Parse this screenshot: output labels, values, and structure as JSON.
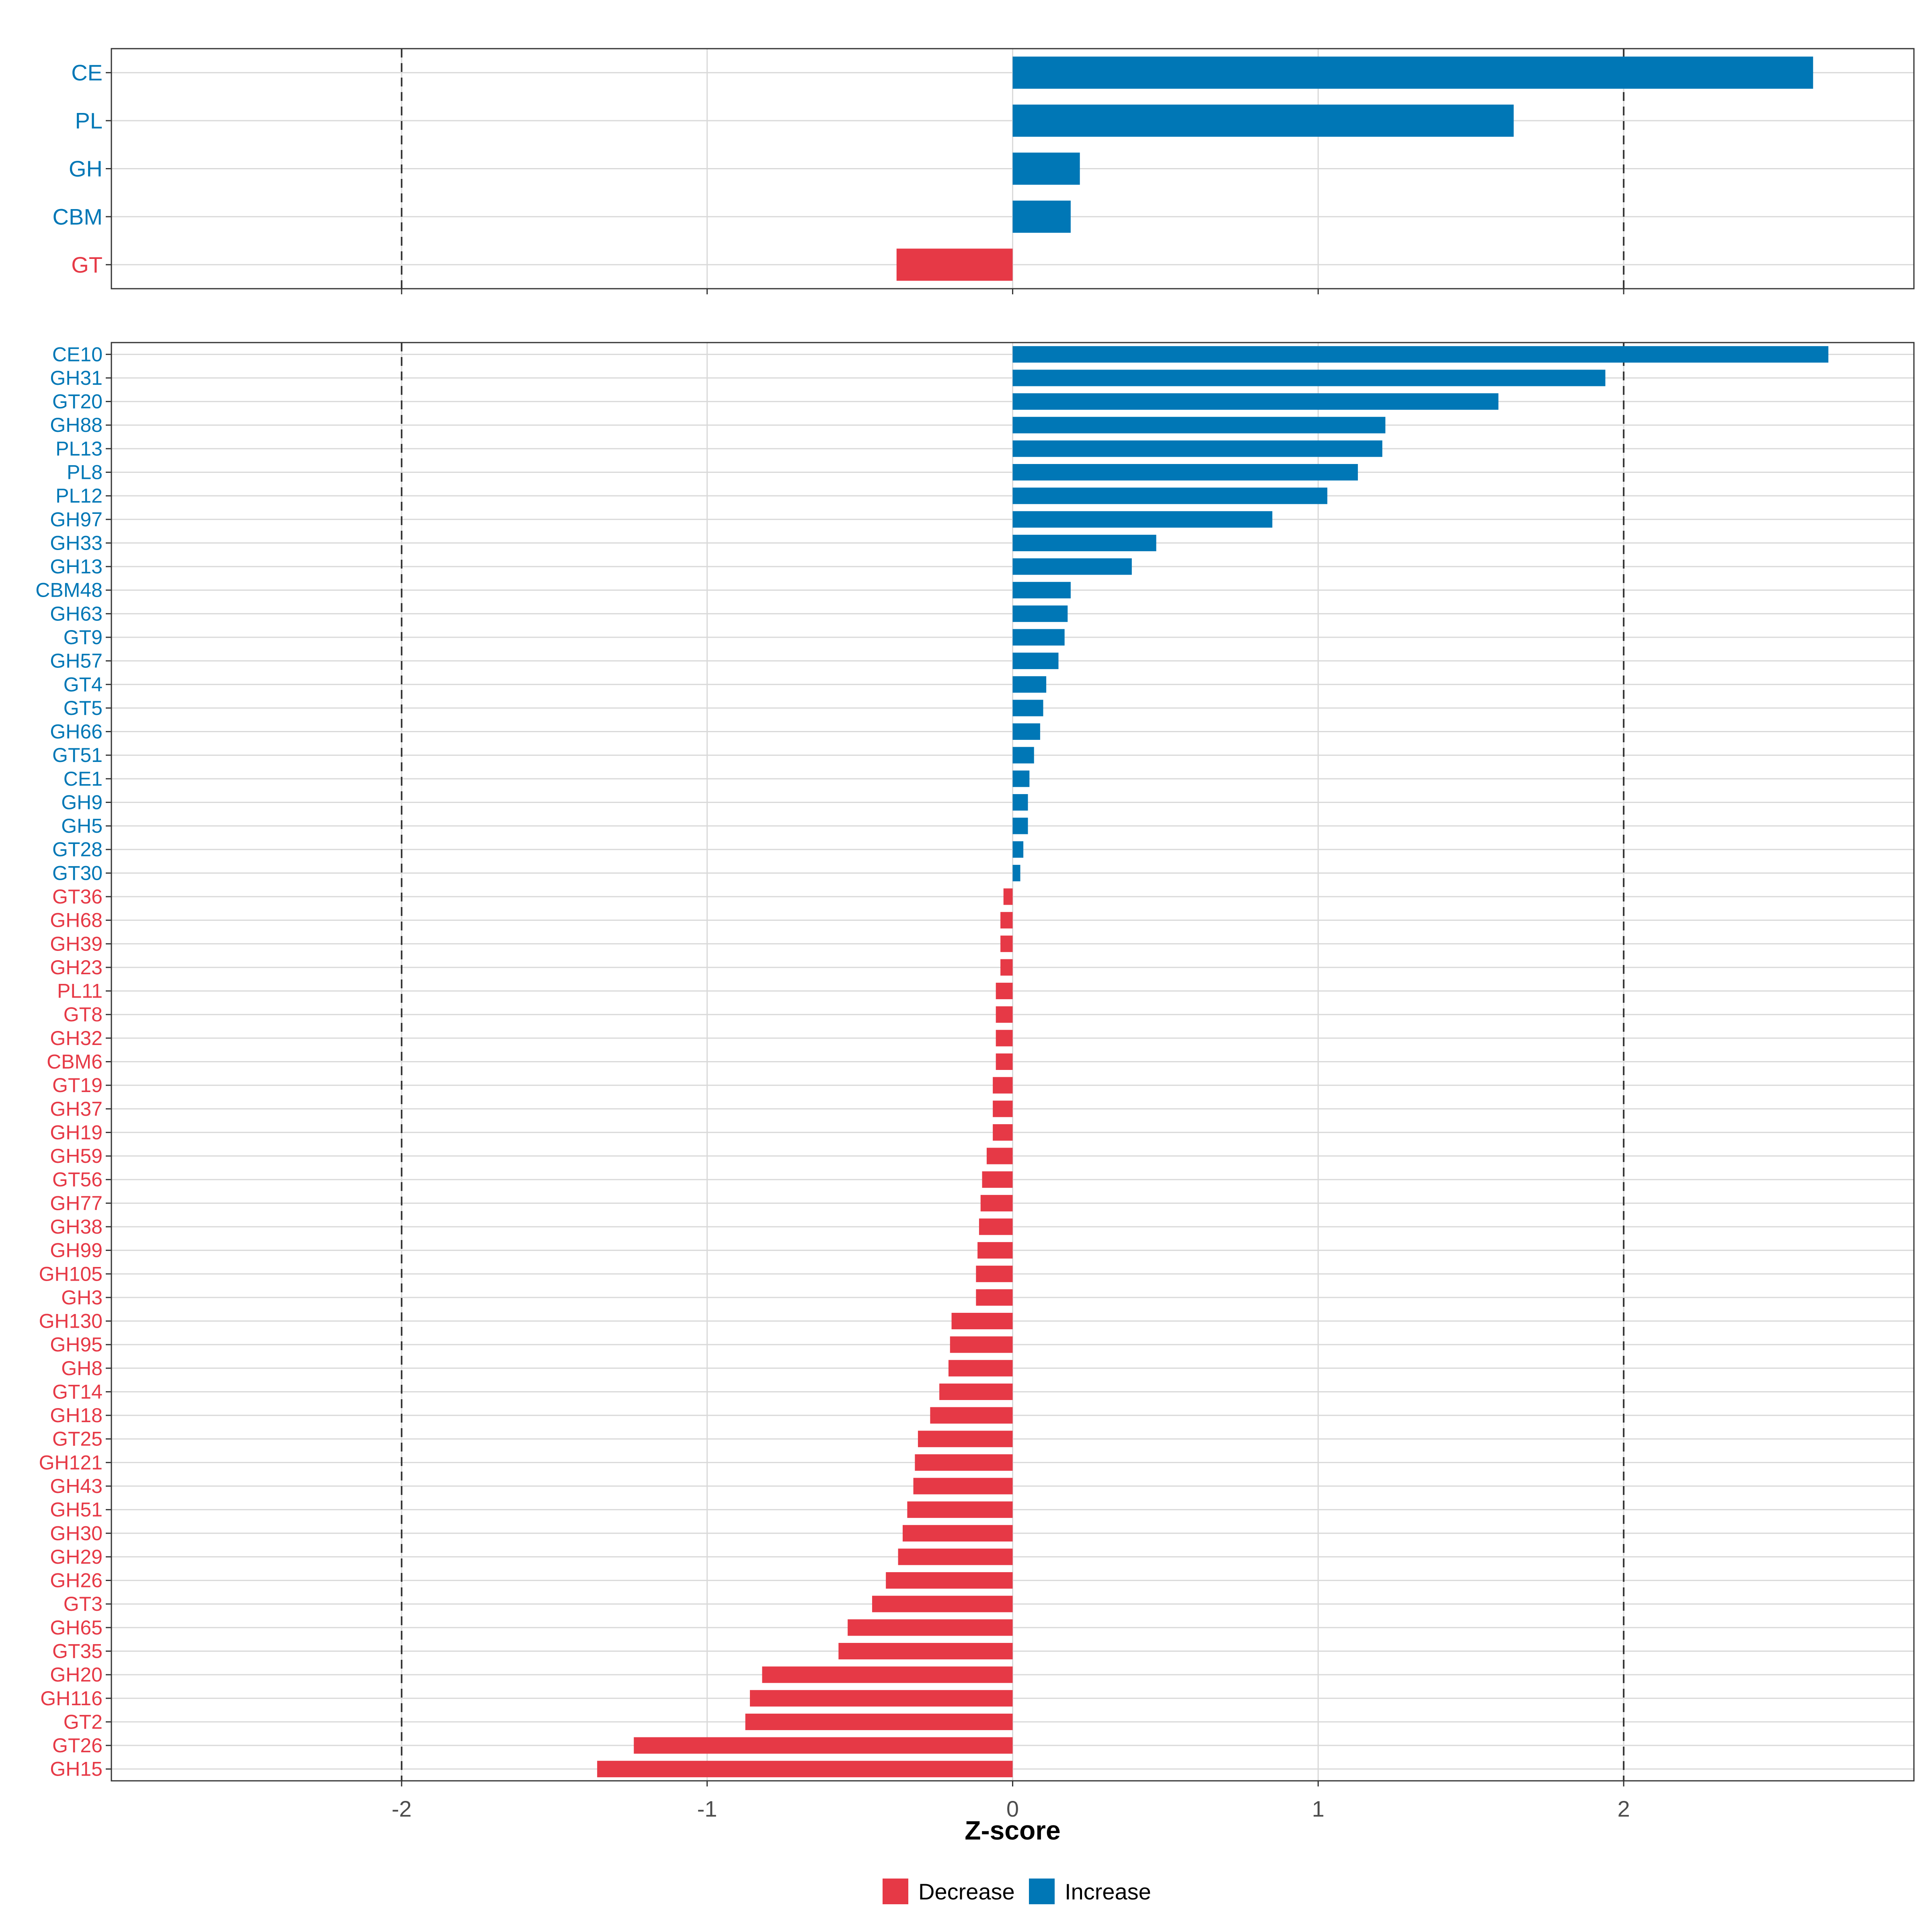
{
  "colors": {
    "decrease": "#E63946",
    "increase": "#0077B6",
    "grid": "#d9d9d9",
    "axis_text": "#4d4d4d",
    "threshold": "#333333",
    "panel_border": "#333333"
  },
  "chart_data": [
    {
      "type": "bar",
      "orientation": "horizontal",
      "panel": "top",
      "categories": [
        "CE",
        "PL",
        "GH",
        "CBM",
        "GT"
      ],
      "values": [
        2.62,
        1.64,
        0.22,
        0.19,
        -0.38
      ],
      "direction": [
        "Increase",
        "Increase",
        "Increase",
        "Increase",
        "Decrease"
      ],
      "xlim": [
        -2.95,
        2.95
      ],
      "xticks": [
        -2,
        -1,
        0,
        1,
        2
      ],
      "threshold_lines": [
        -2,
        2
      ]
    },
    {
      "type": "bar",
      "orientation": "horizontal",
      "panel": "bottom",
      "categories": [
        "CE10",
        "GH31",
        "GT20",
        "GH88",
        "PL13",
        "PL8",
        "PL12",
        "GH97",
        "GH33",
        "GH13",
        "CBM48",
        "GH63",
        "GT9",
        "GH57",
        "GT4",
        "GT5",
        "GH66",
        "GT51",
        "CE1",
        "GH9",
        "GH5",
        "GT28",
        "GT30",
        "GT36",
        "GH68",
        "GH39",
        "GH23",
        "PL11",
        "GT8",
        "GH32",
        "CBM6",
        "GT19",
        "GH37",
        "GH19",
        "GH59",
        "GT56",
        "GH77",
        "GH38",
        "GH99",
        "GH105",
        "GH3",
        "GH130",
        "GH95",
        "GH8",
        "GT14",
        "GH18",
        "GT25",
        "GH121",
        "GH43",
        "GH51",
        "GH30",
        "GH29",
        "GH26",
        "GT3",
        "GH65",
        "GT35",
        "GH20",
        "GH116",
        "GT2",
        "GT26",
        "GH15"
      ],
      "values": [
        2.67,
        1.94,
        1.59,
        1.22,
        1.21,
        1.13,
        1.03,
        0.85,
        0.47,
        0.39,
        0.19,
        0.18,
        0.17,
        0.15,
        0.11,
        0.1,
        0.09,
        0.07,
        0.055,
        0.05,
        0.05,
        0.035,
        0.025,
        -0.03,
        -0.04,
        -0.04,
        -0.04,
        -0.055,
        -0.055,
        -0.055,
        -0.055,
        -0.065,
        -0.065,
        -0.065,
        -0.085,
        -0.1,
        -0.105,
        -0.11,
        -0.115,
        -0.12,
        -0.12,
        -0.2,
        -0.205,
        -0.21,
        -0.24,
        -0.27,
        -0.31,
        -0.32,
        -0.325,
        -0.345,
        -0.36,
        -0.375,
        -0.415,
        -0.46,
        -0.54,
        -0.57,
        -0.82,
        -0.86,
        -0.875,
        -1.24,
        -1.36
      ],
      "xlim": [
        -2.95,
        2.95
      ],
      "xticks": [
        -2,
        -1,
        0,
        1,
        2
      ],
      "xlabel": "Z-score",
      "threshold_lines": [
        -2,
        2
      ]
    }
  ],
  "tick_labels": [
    "-2",
    "-1",
    "0",
    "1",
    "2"
  ],
  "legend": {
    "decrease_label": "Decrease",
    "increase_label": "Increase"
  }
}
